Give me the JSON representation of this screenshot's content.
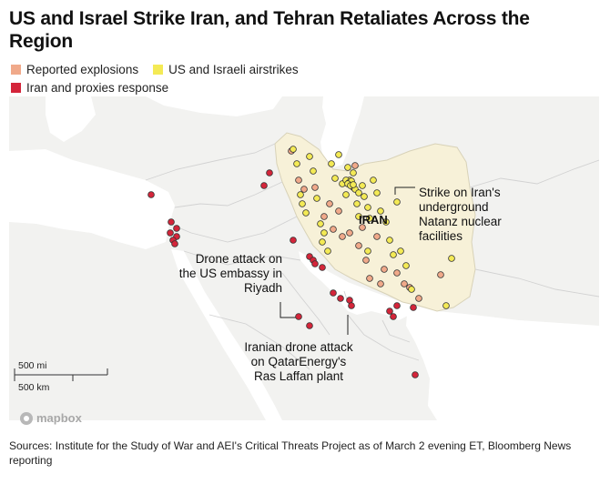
{
  "header": {
    "title": "US and Israel Strike Iran, and Tehran Retaliates Across the Region"
  },
  "legend": {
    "items": [
      {
        "label": "Reported explosions",
        "color": "#f0a98a"
      },
      {
        "label": "US and Israeli airstrikes",
        "color": "#f4ea55"
      },
      {
        "label": "Iran and proxies response",
        "color": "#d4253a"
      }
    ]
  },
  "map": {
    "country_label": "IRAN",
    "colors": {
      "water": "#ffffff",
      "land": "#f2f2f0",
      "iran": "#f7f1d8",
      "border": "#cfcfcf",
      "explosion": "#f0a98a",
      "airstrike": "#f4ea55",
      "response": "#d4253a"
    },
    "annotations": {
      "natanz": [
        "Strike on Iran's",
        "underground",
        "Natanz nuclear",
        "facilities"
      ],
      "riyadh": [
        "Drone attack on",
        "the US embassy in",
        "Riyadh"
      ],
      "ras_laffan": [
        "Iranian drone attack",
        "on QatarEnergy's",
        "Ras Laffan plant"
      ]
    },
    "scale": {
      "mi": "500 mi",
      "km": "500 km"
    },
    "attribution": "mapbox"
  },
  "footer": {
    "source": "Sources: Institute for the Study of War and AEI's Critical Threats Project as of March 2 evening ET, Bloomberg News reporting"
  }
}
